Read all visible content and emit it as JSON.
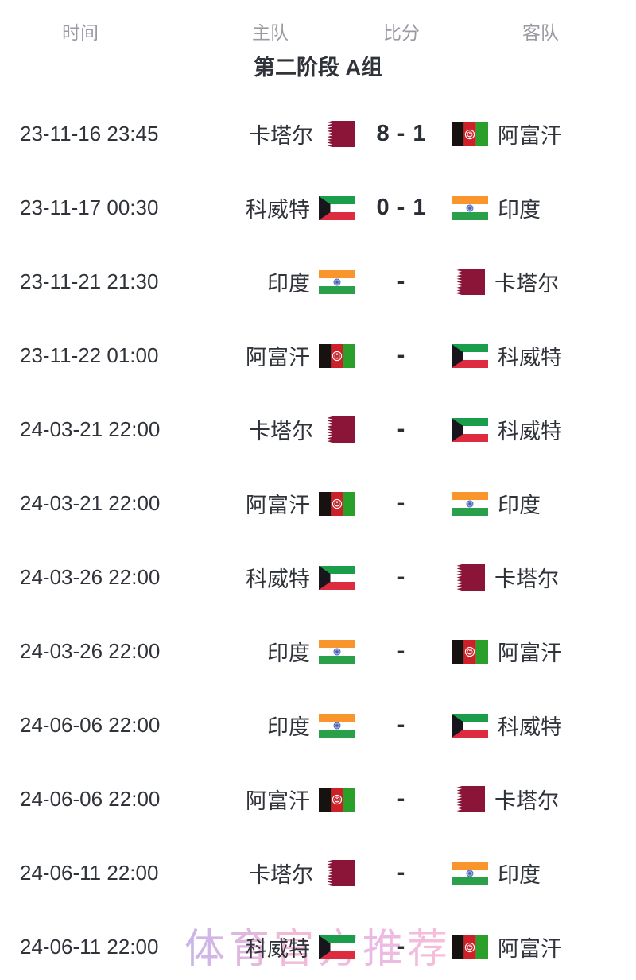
{
  "header": {
    "columns": [
      {
        "id": "time",
        "label": "时间"
      },
      {
        "id": "home",
        "label": "主队"
      },
      {
        "id": "score",
        "label": "比分"
      },
      {
        "id": "away",
        "label": "客队"
      }
    ]
  },
  "group": {
    "title": "第二阶段 A组"
  },
  "matches": [
    {
      "time": "23-11-16 23:45",
      "home": {
        "name": "卡塔尔",
        "flag": "qatar"
      },
      "score": "8 - 1",
      "away": {
        "name": "阿富汗",
        "flag": "afghanistan"
      }
    },
    {
      "time": "23-11-17 00:30",
      "home": {
        "name": "科威特",
        "flag": "kuwait"
      },
      "score": "0 - 1",
      "away": {
        "name": "印度",
        "flag": "india"
      }
    },
    {
      "time": "23-11-21 21:30",
      "home": {
        "name": "印度",
        "flag": "india"
      },
      "score": "-",
      "away": {
        "name": "卡塔尔",
        "flag": "qatar"
      }
    },
    {
      "time": "23-11-22 01:00",
      "home": {
        "name": "阿富汗",
        "flag": "afghanistan"
      },
      "score": "-",
      "away": {
        "name": "科威特",
        "flag": "kuwait"
      }
    },
    {
      "time": "24-03-21 22:00",
      "home": {
        "name": "卡塔尔",
        "flag": "qatar"
      },
      "score": "-",
      "away": {
        "name": "科威特",
        "flag": "kuwait"
      }
    },
    {
      "time": "24-03-21 22:00",
      "home": {
        "name": "阿富汗",
        "flag": "afghanistan"
      },
      "score": "-",
      "away": {
        "name": "印度",
        "flag": "india"
      }
    },
    {
      "time": "24-03-26 22:00",
      "home": {
        "name": "科威特",
        "flag": "kuwait"
      },
      "score": "-",
      "away": {
        "name": "卡塔尔",
        "flag": "qatar"
      }
    },
    {
      "time": "24-03-26 22:00",
      "home": {
        "name": "印度",
        "flag": "india"
      },
      "score": "-",
      "away": {
        "name": "阿富汗",
        "flag": "afghanistan"
      }
    },
    {
      "time": "24-06-06 22:00",
      "home": {
        "name": "印度",
        "flag": "india"
      },
      "score": "-",
      "away": {
        "name": "科威特",
        "flag": "kuwait"
      }
    },
    {
      "time": "24-06-06 22:00",
      "home": {
        "name": "阿富汗",
        "flag": "afghanistan"
      },
      "score": "-",
      "away": {
        "name": "卡塔尔",
        "flag": "qatar"
      }
    },
    {
      "time": "24-06-11 22:00",
      "home": {
        "name": "卡塔尔",
        "flag": "qatar"
      },
      "score": "-",
      "away": {
        "name": "印度",
        "flag": "india"
      }
    },
    {
      "time": "24-06-11 22:00",
      "home": {
        "name": "科威特",
        "flag": "kuwait"
      },
      "score": "-",
      "away": {
        "name": "阿富汗",
        "flag": "afghanistan"
      }
    }
  ],
  "watermark": {
    "text": "体育官方推荐",
    "gradient_start": "#b9a2e6",
    "gradient_end": "#f7aecd"
  },
  "colors": {
    "page_background": "#ffffff",
    "header_text": "#9a9aa2",
    "body_text": "#30343a",
    "score_text": "#2b2f35",
    "flags": {
      "qatar": {
        "maroon": "#8a1538",
        "white": "#ffffff"
      },
      "kuwait": {
        "green": "#1b9e4b",
        "white": "#ffffff",
        "red": "#dd2b3f",
        "black": "#16161c"
      },
      "india": {
        "saffron": "#f9952d",
        "white": "#ffffff",
        "green": "#2aa04a",
        "chakra": "#3b5bb5",
        "chakra_fill": "#e8eefb"
      },
      "afghanistan": {
        "black": "#17120f",
        "red": "#ce2028",
        "green": "#2aa02a",
        "white": "#ffffff"
      }
    }
  }
}
